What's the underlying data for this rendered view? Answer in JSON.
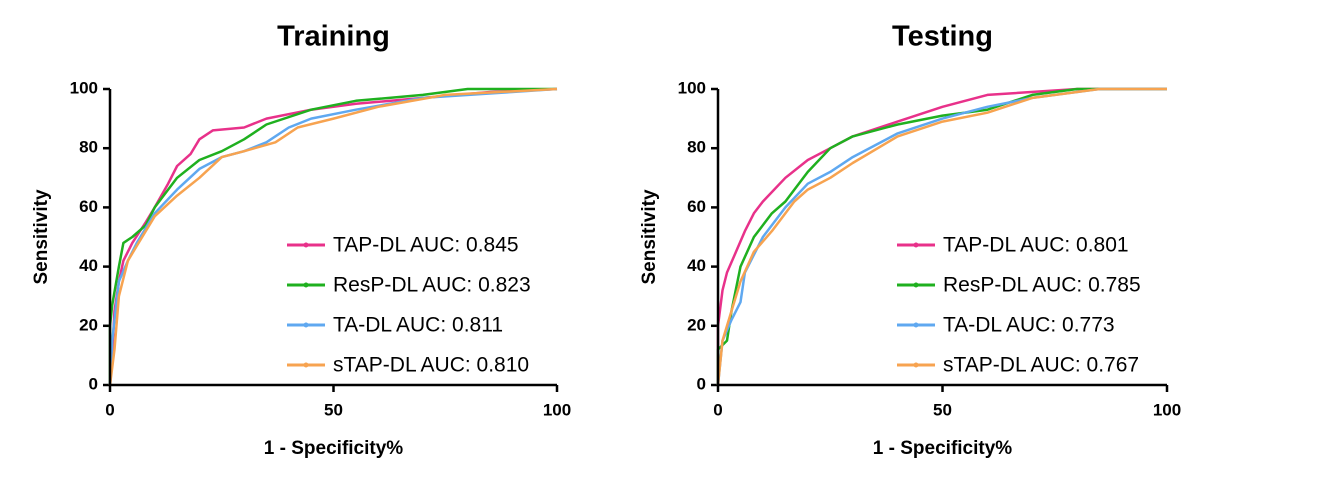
{
  "chart_data": [
    {
      "type": "line",
      "title": "Training",
      "x_label": "1 - Specificity%",
      "y_label": "Sensitivity",
      "xlim": [
        0,
        100
      ],
      "ylim": [
        0,
        100
      ],
      "xticks": [
        0,
        50,
        100
      ],
      "yticks": [
        0,
        20,
        40,
        60,
        80,
        100
      ],
      "grid": false,
      "legend": "lower right",
      "series": [
        {
          "name": "TAP-DL AUC: 0.845",
          "color": "#e8318a",
          "x": [
            0,
            0.5,
            1,
            2,
            3,
            5,
            8,
            10,
            13,
            15,
            18,
            20,
            23,
            30,
            35,
            45,
            55,
            70,
            85,
            100
          ],
          "values": [
            0,
            10,
            25,
            35,
            42,
            48,
            55,
            60,
            68,
            74,
            78,
            83,
            86,
            87,
            90,
            93,
            95,
            97,
            99,
            100
          ]
        },
        {
          "name": "ResP-DL AUC: 0.823",
          "color": "#1fb01f",
          "x": [
            0,
            0,
            0.5,
            2,
            3,
            5,
            8,
            10,
            15,
            20,
            25,
            30,
            35,
            45,
            55,
            70,
            80,
            100
          ],
          "values": [
            0,
            20,
            27,
            40,
            48,
            50,
            54,
            60,
            70,
            76,
            79,
            83,
            88,
            93,
            96,
            98,
            100,
            100
          ]
        },
        {
          "name": "TA-DL AUC: 0.811",
          "color": "#5fa8f0",
          "x": [
            0,
            0.5,
            2,
            4,
            6,
            10,
            15,
            20,
            25,
            30,
            35,
            40,
            45,
            55,
            70,
            90,
            100
          ],
          "values": [
            0,
            15,
            35,
            42,
            48,
            58,
            66,
            73,
            77,
            79,
            82,
            87,
            90,
            93,
            97,
            99,
            100
          ]
        },
        {
          "name": "sTAP-DL AUC: 0.810",
          "color": "#f7a350",
          "x": [
            0,
            1,
            2,
            4,
            6,
            10,
            15,
            20,
            25,
            30,
            37,
            42,
            50,
            60,
            75,
            100
          ],
          "values": [
            0,
            12,
            30,
            42,
            47,
            57,
            64,
            70,
            77,
            79,
            82,
            87,
            90,
            94,
            98,
            100
          ]
        }
      ]
    },
    {
      "type": "line",
      "title": "Testing",
      "x_label": "1 - Specificity%",
      "y_label": "Sensitivity",
      "xlim": [
        0,
        100
      ],
      "ylim": [
        0,
        100
      ],
      "xticks": [
        0,
        50,
        100
      ],
      "yticks": [
        0,
        20,
        40,
        60,
        80,
        100
      ],
      "grid": false,
      "legend": "lower right",
      "series": [
        {
          "name": "TAP-DL AUC: 0.801",
          "color": "#e8318a",
          "x": [
            0,
            0,
            1,
            2,
            4,
            6,
            8,
            10,
            15,
            20,
            25,
            30,
            40,
            50,
            60,
            80,
            100
          ],
          "values": [
            0,
            20,
            32,
            38,
            45,
            52,
            58,
            62,
            70,
            76,
            80,
            84,
            89,
            94,
            98,
            100,
            100
          ]
        },
        {
          "name": "ResP-DL AUC: 0.785",
          "color": "#1fb01f",
          "x": [
            0,
            0,
            2,
            3,
            5,
            8,
            12,
            15,
            20,
            25,
            30,
            40,
            50,
            60,
            70,
            80,
            100
          ],
          "values": [
            0,
            12,
            15,
            25,
            40,
            50,
            58,
            62,
            72,
            80,
            84,
            88,
            91,
            93,
            98,
            100,
            100
          ]
        },
        {
          "name": "TA-DL AUC: 0.773",
          "color": "#5fa8f0",
          "x": [
            0,
            1,
            3,
            5,
            6,
            10,
            15,
            20,
            25,
            30,
            40,
            50,
            60,
            70,
            85,
            100
          ],
          "values": [
            0,
            15,
            22,
            28,
            38,
            50,
            60,
            68,
            72,
            77,
            85,
            90,
            94,
            97,
            100,
            100
          ]
        },
        {
          "name": "sTAP-DL AUC: 0.767",
          "color": "#f7a350",
          "x": [
            0,
            1,
            3,
            5,
            8,
            12,
            17,
            20,
            25,
            30,
            40,
            50,
            60,
            70,
            85,
            100
          ],
          "values": [
            0,
            15,
            25,
            35,
            45,
            52,
            62,
            66,
            70,
            75,
            84,
            89,
            92,
            97,
            100,
            100
          ]
        }
      ]
    }
  ]
}
